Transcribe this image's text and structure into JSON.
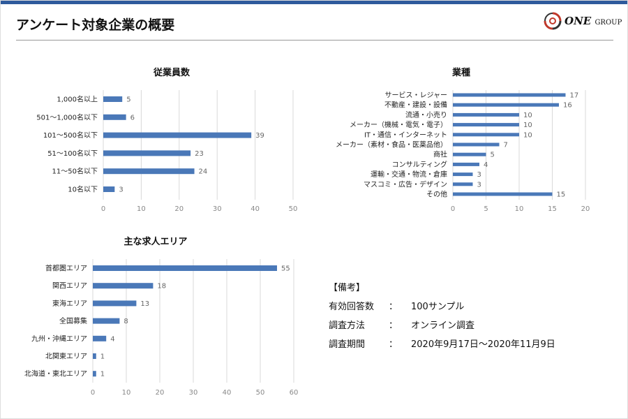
{
  "header": {
    "title": "アンケート対象企業の概要",
    "logo_text": "ONE GROUP"
  },
  "colors": {
    "bar": "#4a78b8",
    "topbar": "#2e5a9c",
    "grid": "#d9d9d9"
  },
  "chart_data": [
    {
      "type": "bar",
      "orientation": "horizontal",
      "title": "従業員数",
      "categories": [
        "1,000名以上",
        "501～1,000名以下",
        "101～500名以下",
        "51～100名以下",
        "11～50名以下",
        "10名以下"
      ],
      "values": [
        5,
        6,
        39,
        23,
        24,
        3
      ],
      "xlim": [
        0,
        50
      ],
      "xticks": [
        0,
        10,
        20,
        30,
        40,
        50
      ],
      "grid": true
    },
    {
      "type": "bar",
      "orientation": "horizontal",
      "title": "業種",
      "categories": [
        "サービス・レジャー",
        "不動産・建設・設備",
        "流通・小売り",
        "メーカー（機械・電気・電子）",
        "IT・通信・インターネット",
        "メーカー（素材・食品・医薬品他）",
        "商社",
        "コンサルティング",
        "運輸・交通・物流・倉庫",
        "マスコミ・広告・デザイン",
        "その他"
      ],
      "values": [
        17,
        16,
        10,
        10,
        10,
        7,
        5,
        4,
        3,
        3,
        15
      ],
      "xlim": [
        0,
        20
      ],
      "xticks": [
        0,
        5,
        10,
        15,
        20
      ],
      "grid": true
    },
    {
      "type": "bar",
      "orientation": "horizontal",
      "title": "主な求人エリア",
      "categories": [
        "首都圏エリア",
        "関西エリア",
        "東海エリア",
        "全国募集",
        "九州・沖縄エリア",
        "北関東エリア",
        "北海道・東北エリア"
      ],
      "values": [
        55,
        18,
        13,
        8,
        4,
        1,
        1
      ],
      "xlim": [
        0,
        60
      ],
      "xticks": [
        0,
        10,
        20,
        30,
        40,
        50,
        60
      ],
      "grid": true
    }
  ],
  "notes": {
    "heading": "【備考】",
    "rows": [
      {
        "key": "有効回答数",
        "sep": "：",
        "value": "100サンプル"
      },
      {
        "key": "調査方法",
        "sep": "：",
        "value": "オンライン調査"
      },
      {
        "key": "調査期間",
        "sep": "：",
        "value": "2020年9月17日～2020年11月9日"
      }
    ]
  }
}
